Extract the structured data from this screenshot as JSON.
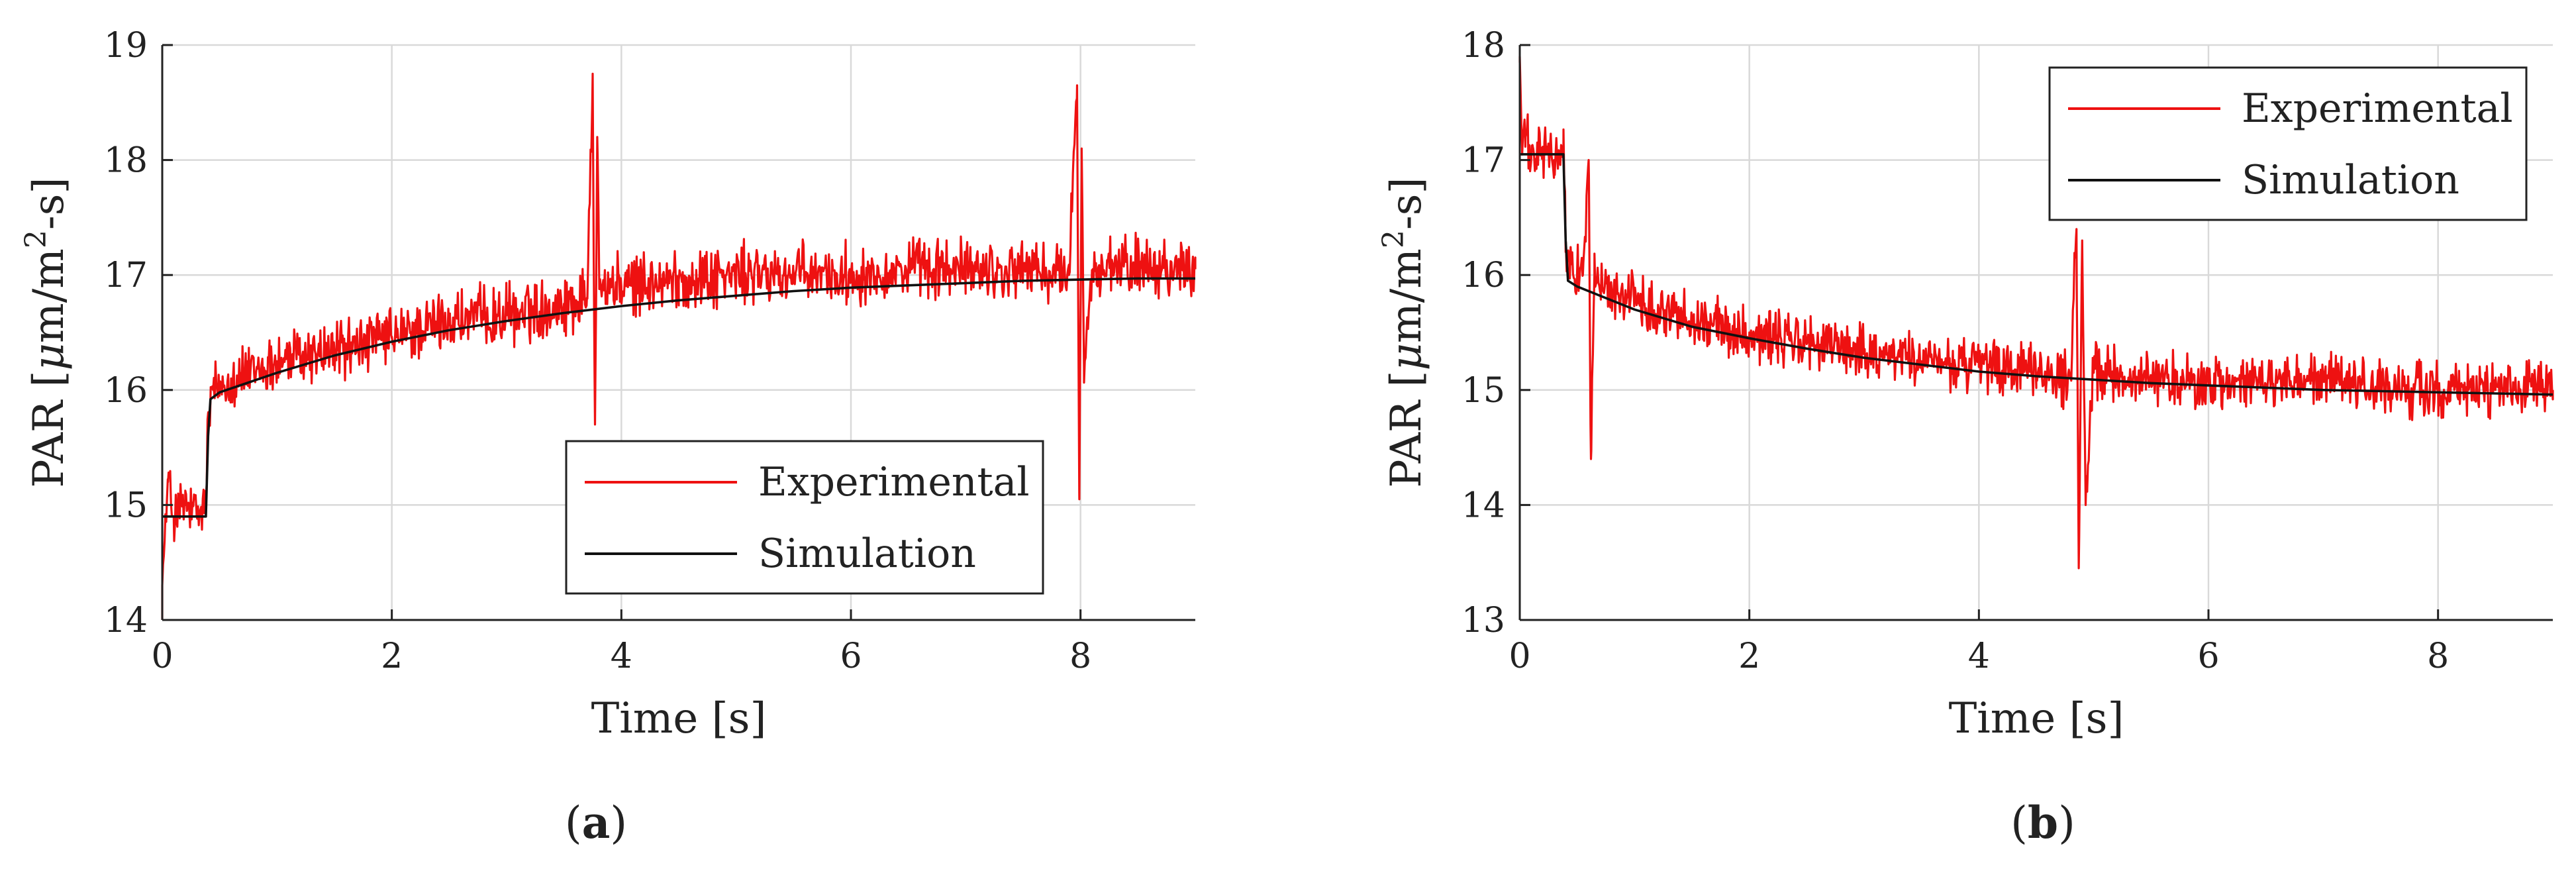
{
  "colors": {
    "experimental": "#ee1111",
    "simulation": "#111111",
    "grid": "#d9d9d9",
    "axis": "#222222"
  },
  "chart_data": [
    {
      "type": "line",
      "panel_label": "a",
      "xlabel": "Time [s]",
      "ylabel_prefix": "PAR [",
      "ylabel_mu": "μ",
      "ylabel_unit": "m/m",
      "ylabel_sup": "2",
      "ylabel_suffix": "-s]",
      "xlim": [
        0,
        9
      ],
      "ylim": [
        14,
        19
      ],
      "x_ticks": [
        0,
        2,
        4,
        6,
        8
      ],
      "y_ticks": [
        14,
        15,
        16,
        17,
        18,
        19
      ],
      "grid": true,
      "legend_position": "lower-right",
      "series": [
        {
          "name": "Experimental",
          "color": "#ee1111",
          "noisy": true,
          "noise_amplitude": 0.2,
          "x": [
            0,
            0.05,
            0.1,
            0.2,
            0.3,
            0.38,
            0.4,
            0.45,
            0.6,
            0.8,
            1.0,
            1.5,
            2.0,
            2.5,
            3.0,
            3.5,
            3.7,
            3.75,
            3.77,
            3.79,
            3.81,
            4.0,
            4.5,
            5.0,
            5.5,
            6.0,
            6.5,
            7.0,
            7.5,
            7.9,
            7.97,
            7.99,
            8.01,
            8.03,
            8.1,
            8.5,
            9.0
          ],
          "y": [
            14.3,
            15.2,
            14.9,
            15.0,
            14.9,
            15.0,
            15.8,
            16.0,
            16.1,
            16.15,
            16.25,
            16.35,
            16.45,
            16.6,
            16.65,
            16.75,
            16.8,
            18.75,
            15.7,
            18.2,
            16.9,
            16.9,
            16.95,
            17.0,
            17.0,
            17.0,
            17.05,
            17.05,
            17.05,
            17.0,
            18.65,
            15.05,
            18.1,
            16.2,
            17.0,
            17.1,
            17.05
          ]
        },
        {
          "name": "Simulation",
          "color": "#111111",
          "noisy": false,
          "x": [
            0,
            0.38,
            0.4,
            0.42,
            0.5,
            1,
            1.5,
            2,
            2.5,
            3,
            3.5,
            4,
            4.5,
            5,
            5.5,
            6,
            6.5,
            7,
            7.5,
            8,
            8.5,
            9
          ],
          "y": [
            14.9,
            14.9,
            15.6,
            15.92,
            15.98,
            16.15,
            16.3,
            16.42,
            16.52,
            16.6,
            16.67,
            16.73,
            16.78,
            16.82,
            16.86,
            16.89,
            16.91,
            16.93,
            16.95,
            16.96,
            16.97,
            16.97
          ]
        }
      ]
    },
    {
      "type": "line",
      "panel_label": "b",
      "xlabel": "Time [s]",
      "ylabel_prefix": "PAR [",
      "ylabel_mu": "μ",
      "ylabel_unit": "m/m",
      "ylabel_sup": "2",
      "ylabel_suffix": "-s]",
      "xlim": [
        0,
        9
      ],
      "ylim": [
        13,
        18
      ],
      "x_ticks": [
        0,
        2,
        4,
        6,
        8
      ],
      "y_ticks": [
        13,
        14,
        15,
        16,
        17,
        18
      ],
      "grid": true,
      "legend_position": "top-right",
      "series": [
        {
          "name": "Experimental",
          "color": "#ee1111",
          "noisy": true,
          "noise_amplitude": 0.18,
          "x": [
            0,
            0.02,
            0.05,
            0.1,
            0.2,
            0.3,
            0.38,
            0.4,
            0.45,
            0.55,
            0.6,
            0.62,
            0.65,
            0.7,
            0.8,
            1.0,
            1.5,
            2.0,
            2.5,
            3.0,
            3.5,
            4.0,
            4.5,
            4.8,
            4.85,
            4.87,
            4.9,
            4.93,
            5.0,
            5.5,
            6.0,
            6.5,
            7.0,
            7.5,
            8.0,
            8.5,
            9.0
          ],
          "y": [
            17.9,
            17.1,
            17.2,
            17.0,
            17.1,
            17.0,
            17.1,
            16.2,
            16.1,
            16.0,
            17.0,
            14.4,
            16.0,
            15.9,
            15.85,
            15.8,
            15.6,
            15.5,
            15.4,
            15.35,
            15.25,
            15.2,
            15.15,
            15.1,
            16.4,
            13.45,
            16.3,
            14.0,
            15.15,
            15.1,
            15.05,
            15.05,
            15.1,
            15.0,
            15.0,
            15.0,
            15.0
          ]
        },
        {
          "name": "Simulation",
          "color": "#111111",
          "noisy": false,
          "x": [
            0,
            0.38,
            0.4,
            0.42,
            0.5,
            1,
            1.5,
            2,
            2.5,
            3,
            3.5,
            4,
            4.5,
            5,
            5.5,
            6,
            6.5,
            7,
            7.5,
            8,
            8.5,
            9
          ],
          "y": [
            17.05,
            17.05,
            16.3,
            15.95,
            15.9,
            15.7,
            15.55,
            15.45,
            15.36,
            15.28,
            15.22,
            15.16,
            15.12,
            15.09,
            15.06,
            15.04,
            15.02,
            15.0,
            14.99,
            14.98,
            14.97,
            14.96
          ]
        }
      ]
    }
  ]
}
